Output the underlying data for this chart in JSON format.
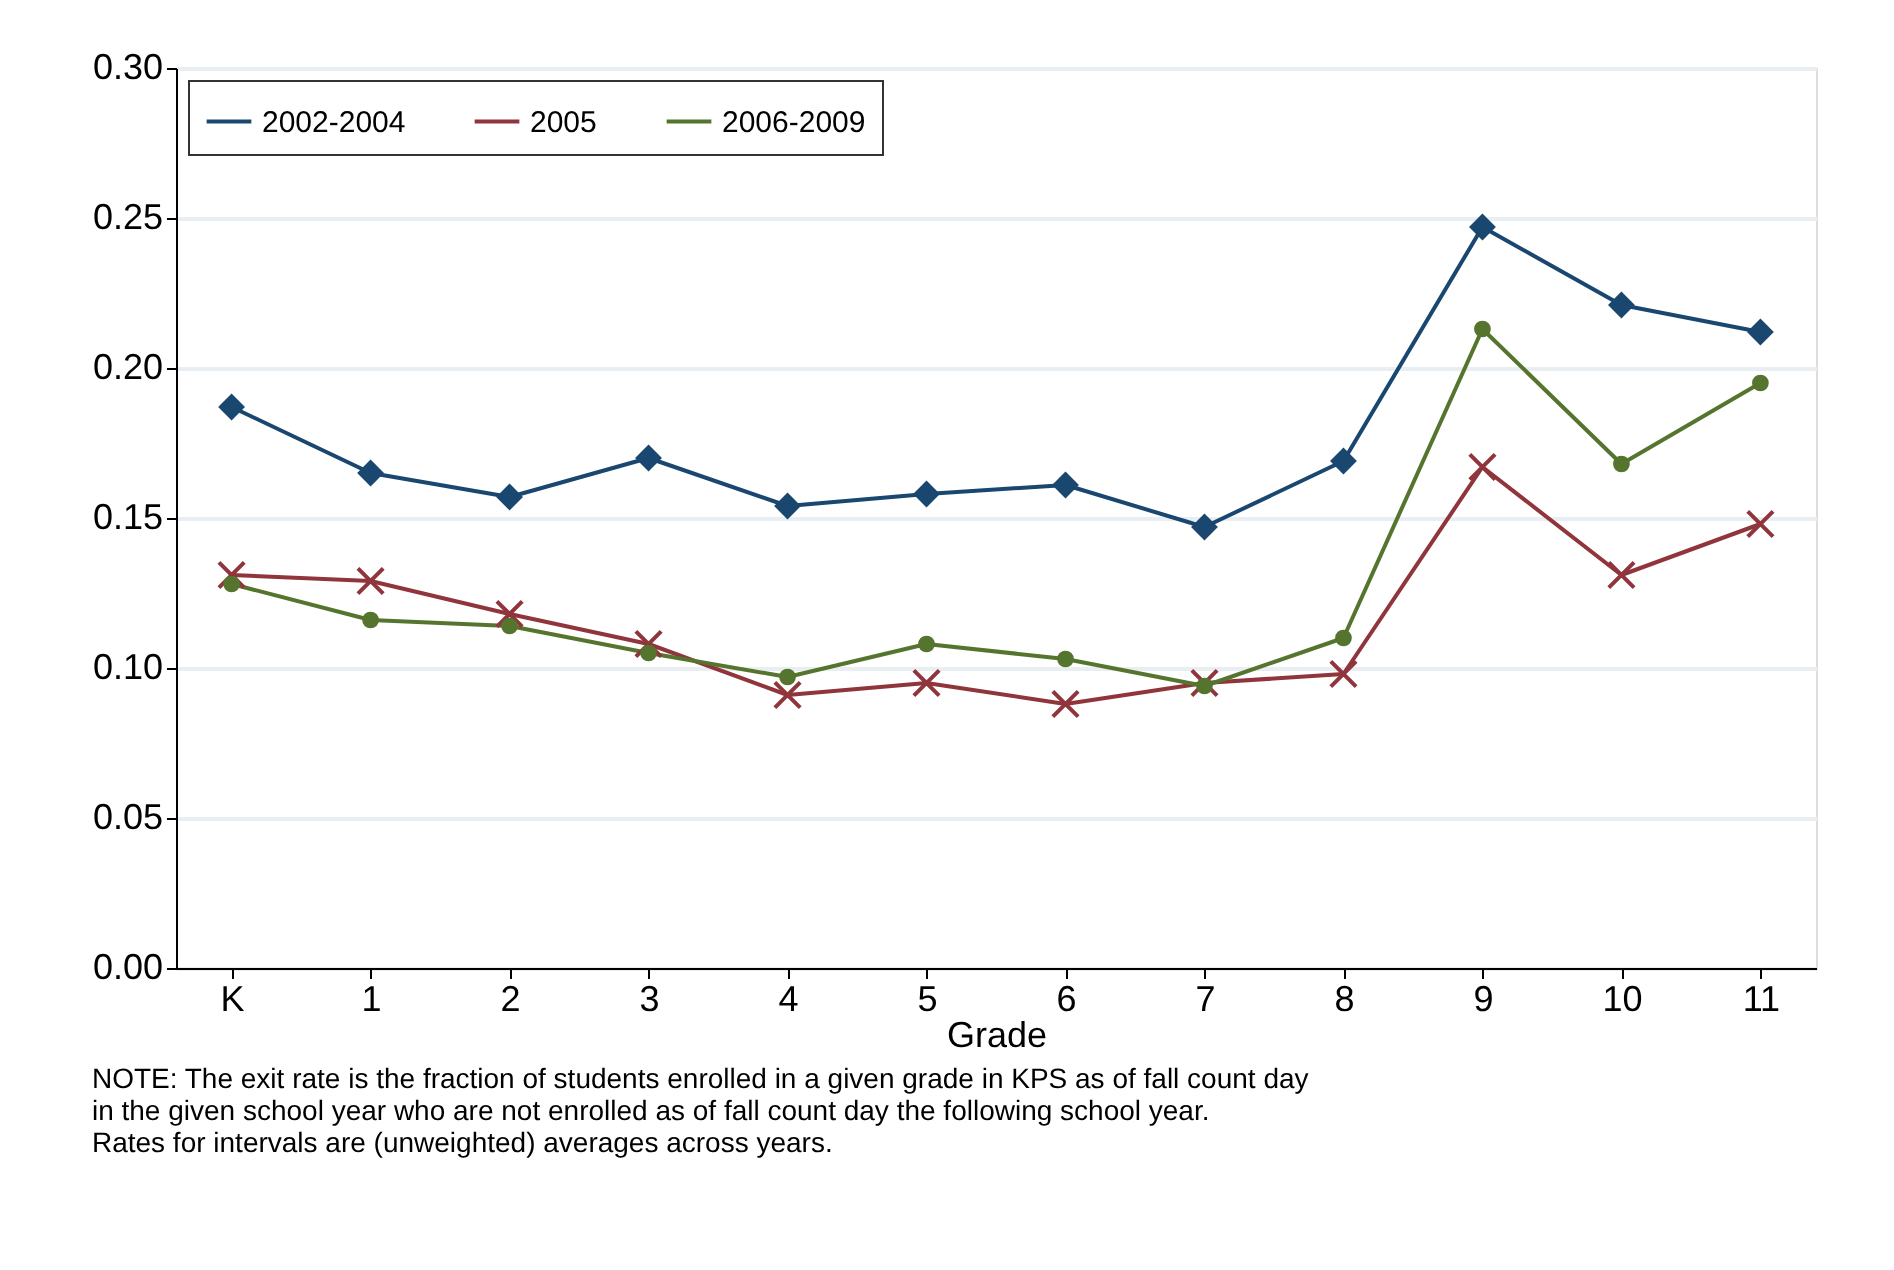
{
  "chart_data": {
    "type": "line",
    "xlabel": "Grade",
    "categories": [
      "K",
      "1",
      "2",
      "3",
      "4",
      "5",
      "6",
      "7",
      "8",
      "9",
      "10",
      "11"
    ],
    "series": [
      {
        "name": "2002-2004",
        "color": "#1a476f",
        "marker": "diamond",
        "values": [
          0.187,
          0.165,
          0.157,
          0.17,
          0.154,
          0.158,
          0.161,
          0.147,
          0.169,
          0.247,
          0.221,
          0.212
        ]
      },
      {
        "name": "2005",
        "color": "#90353b",
        "marker": "cross",
        "values": [
          0.131,
          0.129,
          0.118,
          0.108,
          0.091,
          0.095,
          0.088,
          0.095,
          0.098,
          0.167,
          0.131,
          0.148
        ]
      },
      {
        "name": "2006-2009",
        "color": "#55752f",
        "marker": "circle",
        "values": [
          0.128,
          0.116,
          0.114,
          0.105,
          0.097,
          0.108,
          0.103,
          0.094,
          0.11,
          0.213,
          0.168,
          0.195
        ]
      }
    ],
    "ylim": [
      0,
      0.3
    ],
    "yticks": [
      {
        "value": 0,
        "label": "0.00"
      },
      {
        "value": 0.05,
        "label": "0.05"
      },
      {
        "value": 0.1,
        "label": "0.10"
      },
      {
        "value": 0.15,
        "label": "0.15"
      },
      {
        "value": 0.2,
        "label": "0.20"
      },
      {
        "value": 0.25,
        "label": "0.25"
      },
      {
        "value": 0.3,
        "label": "0.30"
      }
    ],
    "grid": "y",
    "legend": "top left",
    "line_style": "solid",
    "annotations": [
      "NOTE: The exit rate is the fraction of students enrolled in a given grade in KPS as of fall count day",
      "in the given school year who are not enrolled as of fall count day the following school year.",
      "Rates for intervals are (unweighted) averages across years."
    ]
  }
}
